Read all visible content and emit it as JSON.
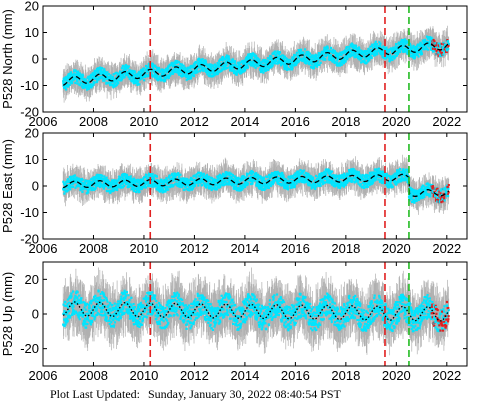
{
  "footer": {
    "label": "Plot Last Updated:",
    "timestamp": "Sunday, January 30, 2022 08:40:54 PST"
  },
  "colors": {
    "error_bars": "#b0b0b0",
    "data": "#00e5ff",
    "recent": "#e02020",
    "model": "#000000",
    "event_red": "#e02020",
    "event_green": "#22bb22"
  },
  "chart_data": [
    {
      "type": "scatter",
      "ylabel": "P528 North (mm)",
      "xlim": [
        2006,
        2022.8
      ],
      "ylim": [
        -20,
        20
      ],
      "xticks": [
        2006,
        2008,
        2010,
        2012,
        2014,
        2016,
        2018,
        2020,
        2022
      ],
      "yticks": [
        -20,
        -10,
        0,
        10,
        20
      ],
      "data_start": 2006.8,
      "recent_start": 2021.4,
      "data_end": 2022.08,
      "trend": {
        "start_value": -8.5,
        "rate_per_year": 0.9,
        "seasonal_amplitude": 1.5
      },
      "scatter_halfwidth": 2.5,
      "errorbar_halfwidth": 4.5,
      "model_line": "dashed",
      "vertical_lines": [
        {
          "x": 2010.25,
          "color": "red",
          "style": "dashed"
        },
        {
          "x": 2019.55,
          "color": "red",
          "style": "dashed"
        },
        {
          "x": 2020.5,
          "color": "green",
          "style": "dashed"
        }
      ]
    },
    {
      "type": "scatter",
      "ylabel": "P528 East (mm)",
      "xlim": [
        2006,
        2022.8
      ],
      "ylim": [
        -20,
        20
      ],
      "xticks": [
        2006,
        2008,
        2010,
        2012,
        2014,
        2016,
        2018,
        2020,
        2022
      ],
      "yticks": [
        -20,
        -10,
        0,
        10,
        20
      ],
      "data_start": 2006.8,
      "recent_start": 2021.4,
      "data_end": 2022.08,
      "trend": {
        "start_value": 0.5,
        "rate_per_year": 0.2,
        "seasonal_amplitude": 1.2
      },
      "offsets": [
        {
          "x": 2020.5,
          "value": -6
        }
      ],
      "scatter_halfwidth": 2.5,
      "errorbar_halfwidth": 4.5,
      "model_line": "dashed",
      "vertical_lines": [
        {
          "x": 2010.25,
          "color": "red",
          "style": "dashed"
        },
        {
          "x": 2019.55,
          "color": "red",
          "style": "dashed"
        },
        {
          "x": 2020.5,
          "color": "green",
          "style": "dashed"
        }
      ]
    },
    {
      "type": "scatter",
      "ylabel": "P528 Up (mm)",
      "xlim": [
        2006,
        2022.8
      ],
      "ylim": [
        -30,
        30
      ],
      "xticks": [
        2006,
        2008,
        2010,
        2012,
        2014,
        2016,
        2018,
        2020,
        2022
      ],
      "yticks": [
        -20,
        0,
        20
      ],
      "data_start": 2006.8,
      "recent_start": 2021.4,
      "data_end": 2022.08,
      "trend": {
        "start_value": 3,
        "rate_per_year": -0.2,
        "seasonal_amplitude": 4
      },
      "scatter_halfwidth": 7,
      "errorbar_halfwidth": 12,
      "model_line": "dotted",
      "vertical_lines": [
        {
          "x": 2010.25,
          "color": "red",
          "style": "dashed"
        },
        {
          "x": 2019.55,
          "color": "red",
          "style": "dashed"
        },
        {
          "x": 2020.5,
          "color": "green",
          "style": "dashed"
        }
      ]
    }
  ]
}
